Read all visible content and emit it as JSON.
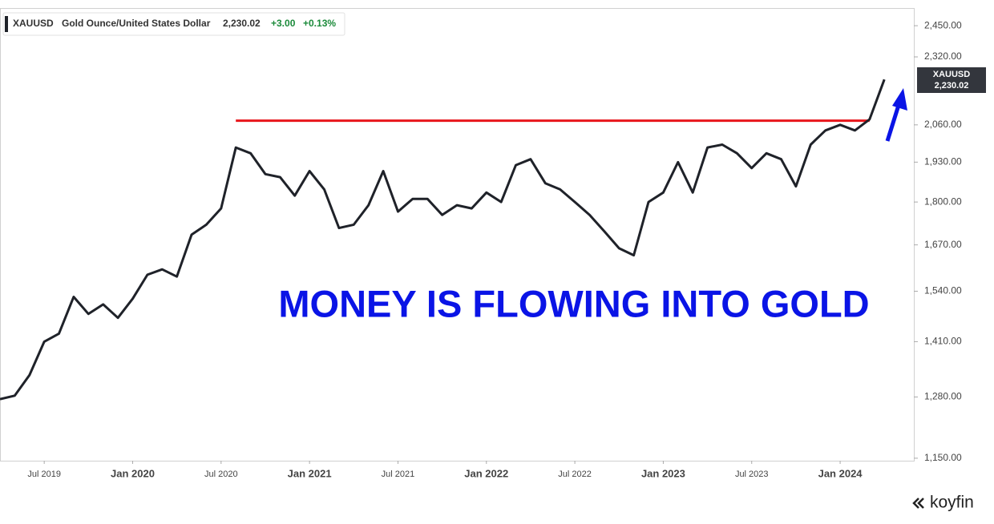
{
  "chart_data": {
    "type": "line",
    "header": {
      "symbol": "XAUUSD",
      "name": "Gold Ounce/United States Dollar",
      "price": "2,230.02",
      "change": "+3.00",
      "change_pct": "+0.13%"
    },
    "price_tag": {
      "symbol": "XAUUSD",
      "price": "2,230.02"
    },
    "annotation": "MONEY IS FLOWING INTO GOLD",
    "brand": "koyfin",
    "log_scale": true,
    "x": [
      "2019-04",
      "2019-05",
      "2019-06",
      "2019-07",
      "2019-08",
      "2019-09",
      "2019-10",
      "2019-11",
      "2019-12",
      "2020-01",
      "2020-02",
      "2020-03",
      "2020-04",
      "2020-05",
      "2020-06",
      "2020-07",
      "2020-08",
      "2020-09",
      "2020-10",
      "2020-11",
      "2020-12",
      "2021-01",
      "2021-02",
      "2021-03",
      "2021-04",
      "2021-05",
      "2021-06",
      "2021-07",
      "2021-08",
      "2021-09",
      "2021-10",
      "2021-11",
      "2021-12",
      "2022-01",
      "2022-02",
      "2022-03",
      "2022-04",
      "2022-05",
      "2022-06",
      "2022-07",
      "2022-08",
      "2022-09",
      "2022-10",
      "2022-11",
      "2022-12",
      "2023-01",
      "2023-02",
      "2023-03",
      "2023-04",
      "2023-05",
      "2023-06",
      "2023-07",
      "2023-08",
      "2023-09",
      "2023-10",
      "2023-11",
      "2023-12",
      "2024-01",
      "2024-02",
      "2024-03",
      "2024-04"
    ],
    "series": [
      {
        "name": "XAUUSD",
        "color": "#1f2229",
        "values": [
          1275,
          1283,
          1330,
          1410,
          1430,
          1525,
          1480,
          1505,
          1470,
          1520,
          1585,
          1600,
          1580,
          1700,
          1730,
          1780,
          1980,
          1960,
          1890,
          1880,
          1820,
          1900,
          1840,
          1720,
          1730,
          1790,
          1900,
          1770,
          1810,
          1810,
          1760,
          1790,
          1780,
          1830,
          1800,
          1920,
          1940,
          1860,
          1840,
          1800,
          1760,
          1710,
          1660,
          1640,
          1800,
          1830,
          1930,
          1830,
          1980,
          1990,
          1960,
          1910,
          1960,
          1940,
          1850,
          1990,
          2040,
          2060,
          2040,
          2080,
          2230
        ]
      }
    ],
    "reference_line": {
      "value": 2075,
      "from": "2020-08",
      "to": "2024-03",
      "color": "#e8161b"
    },
    "xlim": [
      "2019-04",
      "2024-06"
    ],
    "xticks": [
      {
        "value": "2019-07",
        "label": "Jul 2019"
      },
      {
        "value": "2020-01",
        "label": "Jan 2020"
      },
      {
        "value": "2020-07",
        "label": "Jul 2020"
      },
      {
        "value": "2021-01",
        "label": "Jan 2021"
      },
      {
        "value": "2021-07",
        "label": "Jul 2021"
      },
      {
        "value": "2022-01",
        "label": "Jan 2022"
      },
      {
        "value": "2022-07",
        "label": "Jul 2022"
      },
      {
        "value": "2023-01",
        "label": "Jan 2023"
      },
      {
        "value": "2023-07",
        "label": "Jul 2023"
      },
      {
        "value": "2024-01",
        "label": "Jan 2024"
      }
    ],
    "ylim": [
      1145,
      2527
    ],
    "yticks": [
      {
        "value": 1150,
        "label": "1,150.00"
      },
      {
        "value": 1280,
        "label": "1,280.00"
      },
      {
        "value": 1410,
        "label": "1,410.00"
      },
      {
        "value": 1540,
        "label": "1,540.00"
      },
      {
        "value": 1670,
        "label": "1,670.00"
      },
      {
        "value": 1800,
        "label": "1,800.00"
      },
      {
        "value": 1930,
        "label": "1,930.00"
      },
      {
        "value": 2060,
        "label": "2,060.00"
      },
      {
        "value": 2320,
        "label": "2,320.00"
      },
      {
        "value": 2450,
        "label": "2,450.00"
      }
    ]
  }
}
